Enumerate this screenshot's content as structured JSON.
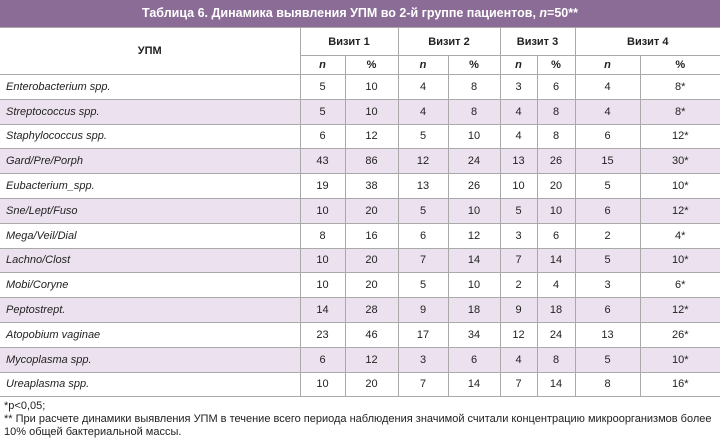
{
  "title": [
    "Таблица 6. Динамика выявления УПМ во 2-й группе пациентов, ",
    "n",
    "=50**"
  ],
  "table": {
    "row_header": "УПМ",
    "visits": [
      "Визит 1",
      "Визит 2",
      "Визит 3",
      "Визит 4"
    ],
    "subheaders": [
      "n",
      "%",
      "n",
      "%",
      "n",
      "%",
      "n",
      "%"
    ],
    "rows": [
      [
        "Enterobacterium spp.",
        5,
        10,
        4,
        8,
        3,
        6,
        4,
        "8*"
      ],
      [
        "Streptococcus spp.",
        5,
        10,
        4,
        8,
        4,
        8,
        4,
        "8*"
      ],
      [
        "Staphylococcus spp.",
        6,
        12,
        5,
        10,
        4,
        8,
        6,
        "12*"
      ],
      [
        "Gard/Pre/Porph",
        43,
        86,
        12,
        24,
        13,
        26,
        15,
        "30*"
      ],
      [
        "Eubacterium_spp.",
        19,
        38,
        13,
        26,
        10,
        20,
        5,
        "10*"
      ],
      [
        "Sne/Lept/Fuso",
        10,
        20,
        5,
        10,
        5,
        10,
        6,
        "12*"
      ],
      [
        "Mega/Veil/Dial",
        8,
        16,
        6,
        12,
        3,
        6,
        2,
        "4*"
      ],
      [
        "Lachno/Clost",
        10,
        20,
        7,
        14,
        7,
        14,
        5,
        "10*"
      ],
      [
        "Mobi/Coryne",
        10,
        20,
        5,
        10,
        2,
        4,
        3,
        "6*"
      ],
      [
        "Peptostrept.",
        14,
        28,
        9,
        18,
        9,
        18,
        6,
        "12*"
      ],
      [
        "Atopobium vaginae",
        23,
        46,
        17,
        34,
        12,
        24,
        13,
        "26*"
      ],
      [
        "Mycoplasma spp.",
        6,
        12,
        3,
        6,
        4,
        8,
        5,
        "10*"
      ],
      [
        "Ureaplasma spp.",
        10,
        20,
        7,
        14,
        7,
        14,
        8,
        "16*"
      ]
    ]
  },
  "footnotes": [
    "*p<0,05;",
    "** При расчете динамики выявления УПМ в течение всего периода наблюдения значимой считали концентрацию микроорганизмов более 10% общей бактериальной массы."
  ]
}
